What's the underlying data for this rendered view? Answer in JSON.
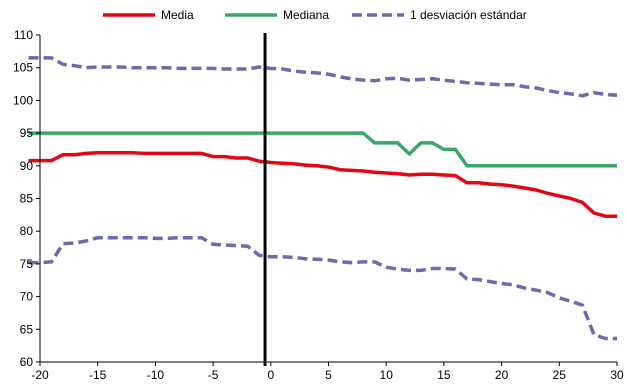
{
  "chart_data": {
    "type": "line",
    "title": "",
    "xlabel": "",
    "ylabel": "",
    "xlim": [
      -20,
      30
    ],
    "ylim": [
      60,
      110
    ],
    "x_ticks": [
      -20,
      -15,
      -10,
      -5,
      0,
      5,
      10,
      15,
      20,
      25,
      30
    ],
    "y_ticks": [
      60,
      65,
      70,
      75,
      80,
      85,
      90,
      95,
      100,
      105,
      110
    ],
    "grid": false,
    "legend_position": "top",
    "vertical_marker_x": -0.5,
    "x": [
      -21,
      -20,
      -19,
      -18,
      -17,
      -16,
      -15,
      -14,
      -13,
      -12,
      -11,
      -10,
      -9,
      -8,
      -7,
      -6,
      -5,
      -4,
      -3,
      -2,
      -1,
      0,
      1,
      2,
      3,
      4,
      5,
      6,
      7,
      8,
      9,
      10,
      11,
      12,
      13,
      14,
      15,
      16,
      17,
      18,
      19,
      20,
      21,
      22,
      23,
      24,
      25,
      26,
      27,
      28,
      29,
      30
    ],
    "series": [
      {
        "name": "Media",
        "color": "#e30613",
        "dash": "solid",
        "values": [
          90.8,
          90.8,
          90.8,
          91.7,
          91.7,
          91.9,
          92.0,
          92.0,
          92.0,
          92.0,
          91.9,
          91.9,
          91.9,
          91.9,
          91.9,
          91.9,
          91.4,
          91.4,
          91.2,
          91.2,
          90.7,
          90.5,
          90.4,
          90.3,
          90.1,
          90.0,
          89.8,
          89.4,
          89.3,
          89.2,
          89.0,
          88.9,
          88.8,
          88.6,
          88.7,
          88.7,
          88.6,
          88.5,
          87.4,
          87.4,
          87.2,
          87.1,
          86.9,
          86.6,
          86.3,
          85.8,
          85.4,
          85.0,
          84.4,
          82.8,
          82.3,
          82.3
        ]
      },
      {
        "name": "Mediana",
        "color": "#3aa66a",
        "dash": "solid",
        "values": [
          95,
          95,
          95,
          95,
          95,
          95,
          95,
          95,
          95,
          95,
          95,
          95,
          95,
          95,
          95,
          95,
          95,
          95,
          95,
          95,
          95,
          95,
          95,
          95,
          95,
          95,
          95,
          95,
          95,
          95,
          93.5,
          93.5,
          93.5,
          91.8,
          93.5,
          93.5,
          92.5,
          92.5,
          90,
          90,
          90,
          90,
          90,
          90,
          90,
          90,
          90,
          90,
          90,
          90,
          90,
          90
        ]
      },
      {
        "name": "1 desviación estándar",
        "color": "#6b6cae",
        "dash": "dashed",
        "values_upper": [
          106.5,
          106.5,
          106.5,
          105.5,
          105.3,
          105.0,
          105.1,
          105.1,
          105.1,
          105.0,
          105.0,
          105.0,
          105.0,
          104.9,
          104.9,
          104.9,
          104.9,
          104.8,
          104.8,
          104.8,
          105.1,
          104.9,
          104.8,
          104.5,
          104.3,
          104.2,
          104.0,
          103.6,
          103.3,
          103.1,
          103.0,
          103.3,
          103.4,
          103.1,
          103.2,
          103.3,
          103.1,
          102.9,
          102.7,
          102.6,
          102.5,
          102.4,
          102.4,
          102.1,
          101.9,
          101.5,
          101.2,
          101.0,
          100.7,
          101.2,
          100.9,
          100.8
        ],
        "values_lower": [
          75.2,
          75.2,
          75.3,
          78.1,
          78.2,
          78.5,
          79.0,
          79.0,
          79.0,
          79.0,
          79.0,
          78.9,
          78.9,
          79.0,
          79.0,
          79.0,
          78.0,
          77.9,
          77.8,
          77.7,
          76.3,
          76.1,
          76.1,
          76.0,
          75.8,
          75.7,
          75.6,
          75.3,
          75.2,
          75.3,
          75.3,
          74.5,
          74.2,
          74.0,
          74.0,
          74.3,
          74.3,
          74.2,
          72.7,
          72.6,
          72.3,
          72.0,
          71.8,
          71.3,
          71.0,
          70.6,
          69.8,
          69.3,
          68.7,
          64.2,
          63.6,
          63.6
        ]
      }
    ]
  }
}
